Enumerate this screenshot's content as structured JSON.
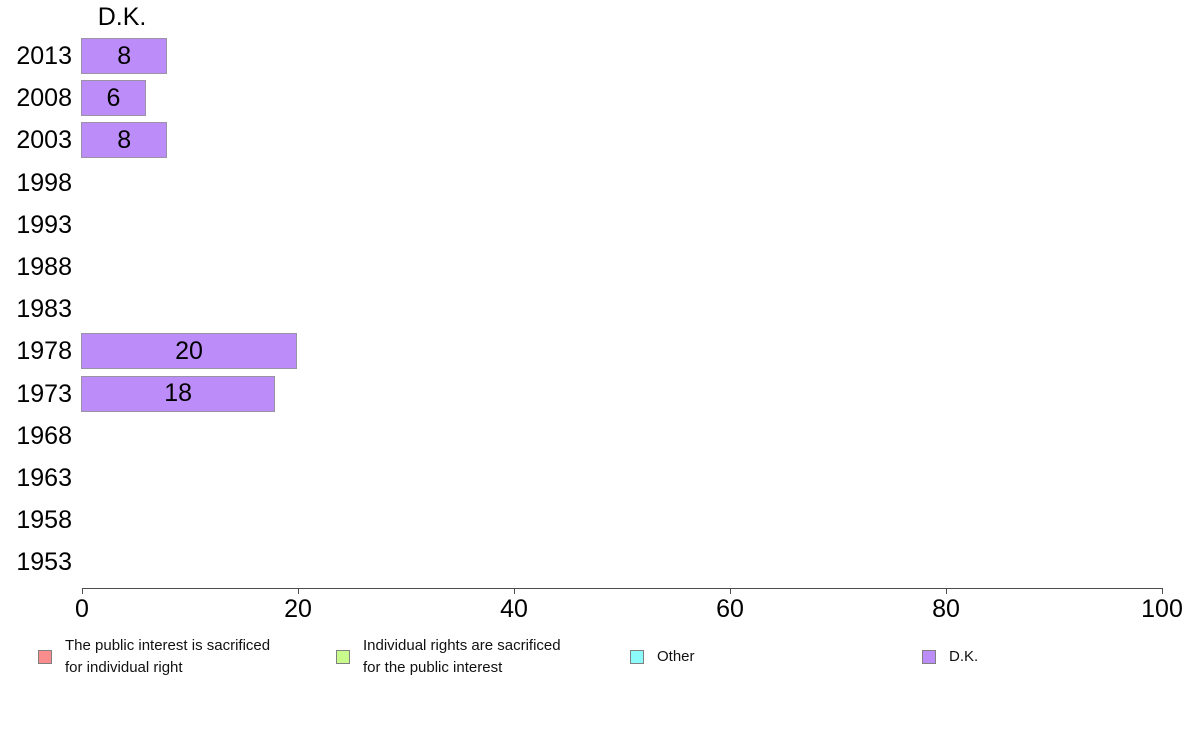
{
  "chart_data": {
    "type": "bar",
    "orientation": "horizontal",
    "title": "D.K.",
    "categories": [
      "2013",
      "2008",
      "2003",
      "1998",
      "1993",
      "1988",
      "1983",
      "1978",
      "1973",
      "1968",
      "1963",
      "1958",
      "1953"
    ],
    "series": [
      {
        "name": "D.K.",
        "color": "#bc8df8",
        "values": [
          8,
          6,
          8,
          0,
          0,
          0,
          0,
          20,
          18,
          0,
          0,
          0,
          0
        ]
      }
    ],
    "value_labels_shown": true,
    "xlabel": "",
    "ylabel": "",
    "xlim": [
      0,
      100
    ],
    "x_ticks": [
      0,
      20,
      40,
      60,
      80,
      100
    ],
    "grid": false,
    "legend": {
      "position": "bottom",
      "items": [
        {
          "lines": [
            "The public interest is sacrificed",
            "for individual right"
          ],
          "color": "#f98c8c"
        },
        {
          "lines": [
            "Individual rights are sacrificed",
            "for the public interest"
          ],
          "color": "#c8fa8c"
        },
        {
          "lines": [
            "Other"
          ],
          "color": "#8cfafa"
        },
        {
          "lines": [
            "D.K."
          ],
          "color": "#bc8df8"
        }
      ]
    }
  }
}
